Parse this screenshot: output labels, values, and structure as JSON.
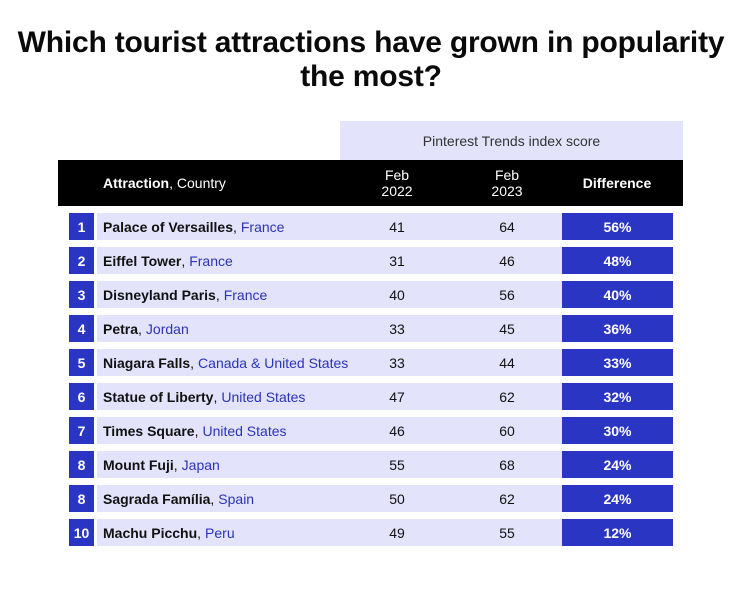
{
  "title": "Which tourist attractions have grown in popularity the most?",
  "supergroup_label": "Pinterest Trends index score",
  "headers": {
    "attraction": "Attraction",
    "country": ", Country",
    "feb": "Feb",
    "y2022": "2022",
    "y2023": "2023",
    "difference": "Difference"
  },
  "colors": {
    "accent": "#2b35c4",
    "band": "#e3e3fb",
    "header_bg": "#000000",
    "country_text": "#2a34b8"
  },
  "rows": [
    {
      "rank": "1",
      "name": "Palace of Versailles",
      "country": "France",
      "feb2022": "41",
      "feb2023": "64",
      "difference": "56%"
    },
    {
      "rank": "2",
      "name": "Eiffel Tower",
      "country": "France",
      "feb2022": "31",
      "feb2023": "46",
      "difference": "48%"
    },
    {
      "rank": "3",
      "name": "Disneyland Paris",
      "country": "France",
      "feb2022": "40",
      "feb2023": "56",
      "difference": "40%"
    },
    {
      "rank": "4",
      "name": "Petra",
      "country": "Jordan",
      "feb2022": "33",
      "feb2023": "45",
      "difference": "36%"
    },
    {
      "rank": "5",
      "name": "Niagara Falls",
      "country": "Canada & United States",
      "feb2022": "33",
      "feb2023": "44",
      "difference": "33%"
    },
    {
      "rank": "6",
      "name": "Statue of Liberty",
      "country": "United States",
      "feb2022": "47",
      "feb2023": "62",
      "difference": "32%"
    },
    {
      "rank": "7",
      "name": "Times Square",
      "country": "United States",
      "feb2022": "46",
      "feb2023": "60",
      "difference": "30%"
    },
    {
      "rank": "8",
      "name": "Mount Fuji",
      "country": "Japan",
      "feb2022": "55",
      "feb2023": "68",
      "difference": "24%"
    },
    {
      "rank": "8",
      "name": "Sagrada Família",
      "country": "Spain",
      "feb2022": "50",
      "feb2023": "62",
      "difference": "24%"
    },
    {
      "rank": "10",
      "name": "Machu Picchu",
      "country": "Peru",
      "feb2022": "49",
      "feb2023": "55",
      "difference": "12%"
    }
  ]
}
